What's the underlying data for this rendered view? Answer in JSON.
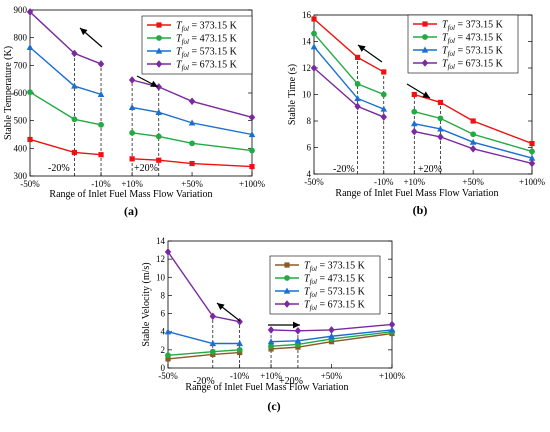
{
  "chart_data": [
    {
      "type": "line",
      "panel_label": "(a)",
      "xlabel": "Range of Inlet Fuel Mass Flow Variation",
      "ylabel": "Stable Temperature (K)",
      "xtick_labels": [
        "-50%",
        "-10%",
        "+10%",
        "+50%",
        "+100%"
      ],
      "ylim": [
        300,
        900
      ],
      "yticks": [
        300,
        400,
        500,
        600,
        700,
        800,
        900
      ],
      "legend_position": "top-right",
      "annotations": [
        "-20%",
        "+20%"
      ],
      "groups": [
        [
          -50,
          -20,
          -10
        ],
        [
          10,
          20,
          50,
          100
        ]
      ],
      "series": [
        {
          "name": "T_fol = 373.15 K",
          "sub": "fol",
          "rest": " = 373.15 K",
          "color": "#ee1111",
          "marker": "square",
          "x": [
            -50,
            -20,
            -10,
            10,
            20,
            50,
            100
          ],
          "values": [
            432,
            385,
            377,
            362,
            357,
            345,
            334
          ]
        },
        {
          "name": "T_fol = 473.15 K",
          "sub": "fol",
          "rest": " = 473.15 K",
          "color": "#22aa44",
          "marker": "circle",
          "x": [
            -50,
            -20,
            -10,
            10,
            20,
            50,
            100
          ],
          "values": [
            603,
            505,
            485,
            456,
            443,
            418,
            392
          ]
        },
        {
          "name": "T_fol = 573.15 K",
          "sub": "fol",
          "rest": " = 573.15 K",
          "color": "#1a6fd0",
          "marker": "triangle",
          "x": [
            -50,
            -20,
            -10,
            10,
            20,
            50,
            100
          ],
          "values": [
            765,
            625,
            595,
            548,
            530,
            492,
            450
          ]
        },
        {
          "name": "T_fol = 673.15 K",
          "sub": "fol",
          "rest": " = 673.15 K",
          "color": "#7a2a9e",
          "marker": "diamond",
          "x": [
            -50,
            -20,
            -10,
            10,
            20,
            50,
            100
          ],
          "values": [
            893,
            743,
            705,
            647,
            622,
            570,
            512
          ]
        }
      ]
    },
    {
      "type": "line",
      "panel_label": "(b)",
      "xlabel": "Range of Inlet Fuel Mass Flow Variation",
      "ylabel": "Stable  Time (s)",
      "xtick_labels": [
        "-50%",
        "-10%",
        "+10%",
        "+50%",
        "+100%"
      ],
      "ylim": [
        4,
        16
      ],
      "yticks": [
        4,
        6,
        8,
        10,
        12,
        14,
        16
      ],
      "legend_position": "top-right",
      "annotations": [
        "-20%",
        "+20%"
      ],
      "groups": [
        [
          -50,
          -20,
          -10
        ],
        [
          10,
          20,
          50,
          100
        ]
      ],
      "series": [
        {
          "name": "T_fol = 373.15 K",
          "sub": "fol",
          "rest": " = 373.15 K",
          "color": "#ee1111",
          "marker": "square",
          "x": [
            -50,
            -20,
            -10,
            10,
            20,
            50,
            100
          ],
          "values": [
            15.7,
            12.8,
            11.7,
            10.0,
            9.4,
            8.0,
            6.3
          ]
        },
        {
          "name": "T_fol = 473.15 K",
          "sub": "fol",
          "rest": " = 473.15 K",
          "color": "#22aa44",
          "marker": "circle",
          "x": [
            -50,
            -20,
            -10,
            10,
            20,
            50,
            100
          ],
          "values": [
            14.6,
            10.8,
            10.0,
            8.7,
            8.2,
            7.0,
            5.7
          ]
        },
        {
          "name": "T_fol = 573.15 K",
          "sub": "fol",
          "rest": " = 573.15 K",
          "color": "#1a6fd0",
          "marker": "triangle",
          "x": [
            -50,
            -20,
            -10,
            10,
            20,
            50,
            100
          ],
          "values": [
            13.6,
            9.7,
            8.9,
            7.8,
            7.4,
            6.4,
            5.2
          ]
        },
        {
          "name": "T_fol = 673.15 K",
          "sub": "fol",
          "rest": " = 673.15 K",
          "color": "#7a2a9e",
          "marker": "diamond",
          "x": [
            -50,
            -20,
            -10,
            10,
            20,
            50,
            100
          ],
          "values": [
            12.0,
            9.1,
            8.3,
            7.2,
            6.8,
            5.9,
            4.8
          ]
        }
      ]
    },
    {
      "type": "line",
      "panel_label": "(c)",
      "xlabel": "Range of Inlet Fuel Mass Flow Variation",
      "ylabel": "Stable Velocity (m/s)",
      "xtick_labels": [
        "-50%",
        "-10%",
        "+10%",
        "+50%",
        "+100%"
      ],
      "ylim": [
        0,
        14
      ],
      "yticks": [
        0,
        2,
        4,
        6,
        8,
        10,
        12,
        14
      ],
      "legend_position": "top-right",
      "annotations": [
        "-20%",
        "+20%"
      ],
      "groups": [
        [
          -50,
          -20,
          -10
        ],
        [
          10,
          20,
          50,
          100
        ]
      ],
      "series": [
        {
          "name": "T_fol = 373.15 K",
          "sub": "fol",
          "rest": " = 373.15 K",
          "color": "#8a5a2b",
          "marker": "square",
          "x": [
            -50,
            -20,
            -10,
            10,
            20,
            50,
            100
          ],
          "values": [
            1.0,
            1.5,
            1.7,
            2.1,
            2.3,
            2.9,
            3.8
          ]
        },
        {
          "name": "T_fol = 473.15 K",
          "sub": "fol",
          "rest": " = 473.15 K",
          "color": "#22aa44",
          "marker": "circle",
          "x": [
            -50,
            -20,
            -10,
            10,
            20,
            50,
            100
          ],
          "values": [
            1.4,
            1.8,
            2.0,
            2.4,
            2.6,
            3.2,
            4.0
          ]
        },
        {
          "name": "T_fol = 573.15 K",
          "sub": "fol",
          "rest": " = 573.15 K",
          "color": "#1a6fd0",
          "marker": "triangle",
          "x": [
            -50,
            -20,
            -10,
            10,
            20,
            50,
            100
          ],
          "values": [
            4.0,
            2.7,
            2.7,
            2.9,
            3.0,
            3.5,
            4.2
          ]
        },
        {
          "name": "T_fol = 673.15 K",
          "sub": "fol",
          "rest": " = 673.15 K",
          "color": "#7a2a9e",
          "marker": "diamond",
          "x": [
            -50,
            -20,
            -10,
            10,
            20,
            50,
            100
          ],
          "values": [
            12.8,
            5.7,
            5.1,
            4.2,
            4.1,
            4.2,
            4.8
          ]
        }
      ]
    }
  ]
}
